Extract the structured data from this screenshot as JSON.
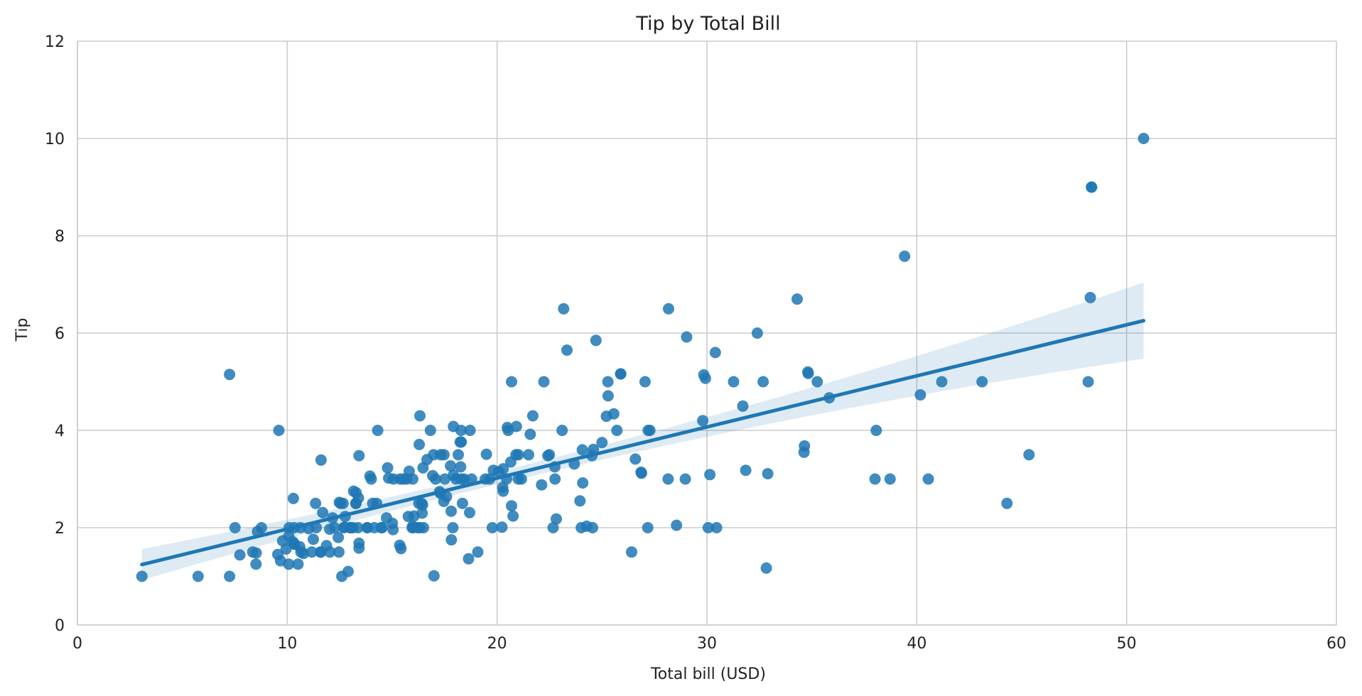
{
  "chart_data": {
    "type": "scatter",
    "title": "Tip by Total Bill",
    "xlabel": "Total bill (USD)",
    "ylabel": "Tip",
    "xlim": [
      0,
      60
    ],
    "ylim": [
      0,
      12
    ],
    "xticks": [
      "0",
      "10",
      "20",
      "30",
      "40",
      "50",
      "60"
    ],
    "yticks": [
      "0",
      "2",
      "4",
      "6",
      "8",
      "10",
      "12"
    ],
    "grid": true,
    "colors": {
      "points": "#1f77b4",
      "line": "#1f77b4",
      "band": "#1f77b4"
    },
    "points": [
      [
        16.99,
        1.01
      ],
      [
        10.34,
        1.66
      ],
      [
        21.01,
        3.5
      ],
      [
        23.68,
        3.31
      ],
      [
        24.59,
        3.61
      ],
      [
        25.29,
        4.71
      ],
      [
        8.77,
        2.0
      ],
      [
        26.88,
        3.12
      ],
      [
        15.04,
        1.96
      ],
      [
        14.78,
        3.23
      ],
      [
        10.27,
        1.71
      ],
      [
        35.26,
        5.0
      ],
      [
        15.42,
        1.57
      ],
      [
        18.43,
        3.0
      ],
      [
        14.83,
        3.02
      ],
      [
        21.58,
        3.92
      ],
      [
        10.33,
        1.67
      ],
      [
        16.29,
        3.71
      ],
      [
        16.97,
        3.5
      ],
      [
        20.65,
        3.35
      ],
      [
        17.92,
        4.08
      ],
      [
        20.29,
        2.75
      ],
      [
        15.77,
        2.23
      ],
      [
        39.42,
        7.58
      ],
      [
        19.82,
        3.18
      ],
      [
        17.81,
        2.34
      ],
      [
        13.37,
        2.0
      ],
      [
        12.69,
        2.0
      ],
      [
        21.7,
        4.3
      ],
      [
        19.65,
        3.0
      ],
      [
        9.55,
        1.45
      ],
      [
        18.35,
        2.5
      ],
      [
        15.06,
        3.0
      ],
      [
        20.69,
        2.45
      ],
      [
        17.78,
        3.27
      ],
      [
        24.06,
        3.6
      ],
      [
        16.31,
        2.0
      ],
      [
        16.93,
        3.07
      ],
      [
        18.69,
        2.31
      ],
      [
        31.27,
        5.0
      ],
      [
        16.04,
        2.24
      ],
      [
        17.46,
        2.54
      ],
      [
        13.94,
        3.06
      ],
      [
        9.68,
        1.32
      ],
      [
        30.4,
        5.6
      ],
      [
        18.29,
        3.0
      ],
      [
        22.23,
        5.0
      ],
      [
        32.4,
        6.0
      ],
      [
        28.55,
        2.05
      ],
      [
        18.04,
        3.0
      ],
      [
        12.54,
        2.5
      ],
      [
        10.29,
        2.6
      ],
      [
        34.81,
        5.2
      ],
      [
        9.94,
        1.56
      ],
      [
        25.56,
        4.34
      ],
      [
        19.49,
        3.51
      ],
      [
        38.01,
        3.0
      ],
      [
        26.41,
        1.5
      ],
      [
        11.24,
        1.76
      ],
      [
        48.27,
        6.73
      ],
      [
        20.29,
        3.21
      ],
      [
        13.81,
        2.0
      ],
      [
        11.02,
        1.98
      ],
      [
        18.29,
        3.76
      ],
      [
        17.59,
        2.64
      ],
      [
        20.08,
        3.15
      ],
      [
        16.45,
        2.47
      ],
      [
        3.07,
        1.0
      ],
      [
        20.23,
        2.01
      ],
      [
        15.01,
        2.09
      ],
      [
        12.02,
        1.97
      ],
      [
        17.07,
        3.0
      ],
      [
        26.86,
        3.14
      ],
      [
        25.28,
        5.0
      ],
      [
        14.73,
        2.2
      ],
      [
        10.51,
        1.25
      ],
      [
        17.92,
        3.08
      ],
      [
        27.2,
        4.0
      ],
      [
        22.76,
        3.0
      ],
      [
        17.29,
        2.71
      ],
      [
        19.44,
        3.0
      ],
      [
        16.66,
        3.4
      ],
      [
        10.07,
        1.83
      ],
      [
        32.68,
        5.0
      ],
      [
        15.98,
        2.03
      ],
      [
        34.83,
        5.17
      ],
      [
        13.03,
        2.0
      ],
      [
        18.28,
        4.0
      ],
      [
        24.71,
        5.85
      ],
      [
        21.16,
        3.0
      ],
      [
        28.97,
        3.0
      ],
      [
        22.49,
        3.5
      ],
      [
        5.75,
        1.0
      ],
      [
        16.32,
        4.3
      ],
      [
        22.75,
        3.25
      ],
      [
        40.17,
        4.73
      ],
      [
        27.28,
        4.0
      ],
      [
        12.03,
        1.5
      ],
      [
        21.01,
        3.0
      ],
      [
        12.46,
        1.5
      ],
      [
        11.35,
        2.5
      ],
      [
        15.38,
        3.0
      ],
      [
        44.3,
        2.5
      ],
      [
        22.42,
        3.48
      ],
      [
        20.92,
        4.08
      ],
      [
        15.36,
        1.64
      ],
      [
        20.49,
        4.06
      ],
      [
        25.21,
        4.29
      ],
      [
        18.24,
        3.76
      ],
      [
        14.31,
        4.0
      ],
      [
        14.0,
        3.0
      ],
      [
        7.25,
        1.0
      ],
      [
        38.07,
        4.0
      ],
      [
        23.95,
        2.55
      ],
      [
        25.71,
        4.0
      ],
      [
        17.31,
        3.5
      ],
      [
        29.93,
        5.07
      ],
      [
        10.65,
        1.5
      ],
      [
        12.43,
        1.8
      ],
      [
        24.08,
        2.92
      ],
      [
        11.69,
        2.31
      ],
      [
        13.42,
        1.68
      ],
      [
        14.26,
        2.5
      ],
      [
        15.95,
        2.0
      ],
      [
        12.48,
        2.52
      ],
      [
        29.8,
        4.2
      ],
      [
        8.52,
        1.48
      ],
      [
        14.52,
        2.0
      ],
      [
        11.38,
        2.0
      ],
      [
        22.82,
        2.18
      ],
      [
        19.08,
        1.5
      ],
      [
        20.27,
        2.83
      ],
      [
        11.17,
        1.5
      ],
      [
        12.26,
        2.0
      ],
      [
        18.26,
        3.25
      ],
      [
        8.51,
        1.25
      ],
      [
        10.33,
        2.0
      ],
      [
        14.15,
        2.0
      ],
      [
        16.0,
        2.0
      ],
      [
        13.16,
        2.75
      ],
      [
        17.47,
        3.5
      ],
      [
        34.3,
        6.7
      ],
      [
        41.19,
        5.0
      ],
      [
        27.05,
        5.0
      ],
      [
        16.43,
        2.3
      ],
      [
        8.35,
        1.5
      ],
      [
        18.64,
        1.36
      ],
      [
        11.87,
        1.63
      ],
      [
        9.78,
        1.73
      ],
      [
        7.51,
        2.0
      ],
      [
        14.07,
        2.5
      ],
      [
        13.13,
        2.0
      ],
      [
        17.26,
        2.74
      ],
      [
        24.55,
        2.0
      ],
      [
        19.77,
        2.0
      ],
      [
        29.85,
        5.14
      ],
      [
        48.17,
        5.0
      ],
      [
        25.0,
        3.75
      ],
      [
        13.39,
        2.61
      ],
      [
        16.49,
        2.0
      ],
      [
        21.5,
        3.5
      ],
      [
        12.66,
        2.5
      ],
      [
        16.21,
        2.0
      ],
      [
        13.81,
        2.0
      ],
      [
        17.51,
        3.0
      ],
      [
        24.52,
        3.48
      ],
      [
        20.76,
        2.24
      ],
      [
        31.71,
        4.5
      ],
      [
        10.59,
        1.61
      ],
      [
        10.63,
        2.0
      ],
      [
        50.81,
        10.0
      ],
      [
        15.81,
        3.16
      ],
      [
        7.25,
        5.15
      ],
      [
        31.85,
        3.18
      ],
      [
        16.82,
        4.0
      ],
      [
        32.9,
        3.11
      ],
      [
        17.89,
        2.0
      ],
      [
        14.48,
        2.0
      ],
      [
        9.6,
        4.0
      ],
      [
        34.63,
        3.55
      ],
      [
        34.65,
        3.68
      ],
      [
        23.33,
        5.65
      ],
      [
        45.35,
        3.5
      ],
      [
        23.17,
        6.5
      ],
      [
        40.55,
        3.0
      ],
      [
        20.69,
        5.0
      ],
      [
        20.9,
        3.5
      ],
      [
        30.46,
        2.0
      ],
      [
        18.15,
        3.5
      ],
      [
        23.1,
        4.0
      ],
      [
        11.59,
        1.5
      ],
      [
        18.71,
        4.0
      ],
      [
        25.89,
        5.16
      ],
      [
        48.33,
        9.0
      ],
      [
        13.27,
        2.5
      ],
      [
        28.17,
        6.5
      ],
      [
        12.9,
        1.1
      ],
      [
        28.15,
        3.0
      ],
      [
        11.59,
        1.5
      ],
      [
        7.74,
        1.44
      ],
      [
        30.14,
        3.09
      ],
      [
        12.16,
        2.2
      ],
      [
        13.42,
        3.48
      ],
      [
        8.58,
        1.92
      ],
      [
        15.98,
        3.0
      ],
      [
        13.42,
        1.58
      ],
      [
        16.27,
        2.5
      ],
      [
        10.09,
        2.0
      ],
      [
        20.45,
        3.0
      ],
      [
        13.28,
        2.72
      ],
      [
        22.12,
        2.88
      ],
      [
        24.01,
        2.0
      ],
      [
        15.69,
        3.0
      ],
      [
        11.61,
        3.39
      ],
      [
        10.77,
        1.47
      ],
      [
        15.53,
        3.0
      ],
      [
        10.07,
        1.25
      ],
      [
        12.6,
        1.0
      ],
      [
        32.83,
        1.17
      ],
      [
        35.83,
        4.67
      ],
      [
        29.03,
        5.92
      ],
      [
        27.18,
        2.0
      ],
      [
        22.67,
        2.0
      ],
      [
        17.82,
        1.75
      ],
      [
        18.78,
        3.0
      ],
      [
        43.11,
        5.0
      ],
      [
        13.0,
        2.0
      ],
      [
        12.74,
        2.01
      ],
      [
        13.0,
        2.0
      ],
      [
        16.4,
        2.5
      ],
      [
        20.53,
        4.0
      ],
      [
        16.47,
        3.23
      ],
      [
        26.59,
        3.41
      ],
      [
        38.73,
        3.0
      ],
      [
        24.27,
        2.03
      ],
      [
        12.76,
        2.23
      ],
      [
        30.06,
        2.0
      ],
      [
        25.89,
        5.16
      ],
      [
        48.33,
        9.0
      ],
      [
        13.27,
        2.5
      ]
    ],
    "regression": {
      "x_range": [
        3.07,
        50.81
      ],
      "slope": 0.105,
      "intercept": 0.92
    }
  }
}
